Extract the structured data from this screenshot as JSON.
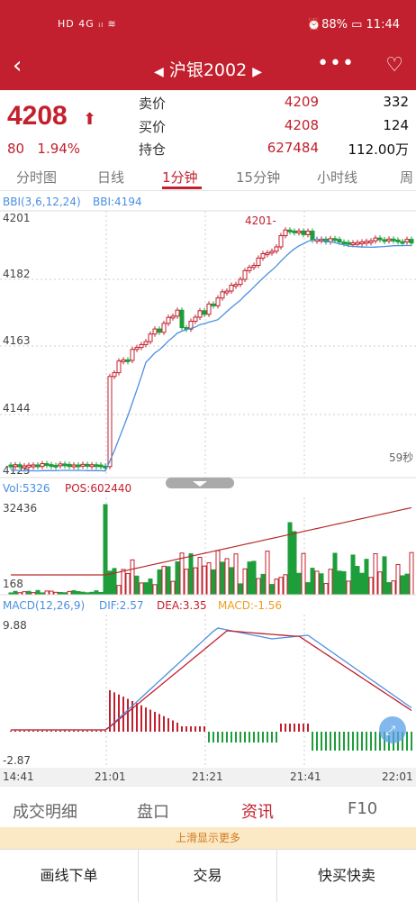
{
  "status": {
    "left": "HD 4G ᵢₗ ≋",
    "right": "⏰88% ▭ 11:44"
  },
  "nav": {
    "title": "沪银2002",
    "back": "‹",
    "more": "•••",
    "heart": "♡"
  },
  "quote": {
    "price": "4208",
    "change": "80",
    "change_pct": "1.94%",
    "rows": [
      {
        "label": "卖价",
        "v1": "4209",
        "v2": "332"
      },
      {
        "label": "买价",
        "v1": "4208",
        "v2": "124"
      },
      {
        "label": "持仓",
        "v1": "627484",
        "v2": "112.00万"
      }
    ]
  },
  "tabs": [
    "分时图",
    "日线",
    "1分钟",
    "15分钟",
    "小时线",
    "周"
  ],
  "indicators": {
    "bbi_label": "BBI(3,6,12,24)",
    "bbi_value": "BBI:4194",
    "vol_label": "Vol:5326",
    "pos_label": "POS:602440",
    "macd_label": "MACD(12,26,9)",
    "dif": "DIF:2.57",
    "dea": "DEA:3.35",
    "macd": "MACD:-1.56",
    "price_annot": "4201-",
    "timer": "59秒"
  },
  "chart_data": {
    "type": "candlestick",
    "price_axis": [
      "4201",
      "4182",
      "4163",
      "4144",
      "4125"
    ],
    "vol_axis": [
      "32436",
      "168"
    ],
    "macd_axis": [
      "9.88",
      "-2.87"
    ],
    "time_axis": [
      "14:41",
      "21:01",
      "21:21",
      "21:41",
      "22:01"
    ]
  },
  "bottom_tabs": [
    "成交明细",
    "盘口",
    "资讯",
    "F10"
  ],
  "hint": "上滑显示更多",
  "actions": [
    "画线下单",
    "交易",
    "快买快卖"
  ],
  "colors": {
    "up": "#c2202e",
    "down": "#1e9e3a",
    "bbi": "#4a8fe0",
    "dea": "#c2202e"
  }
}
